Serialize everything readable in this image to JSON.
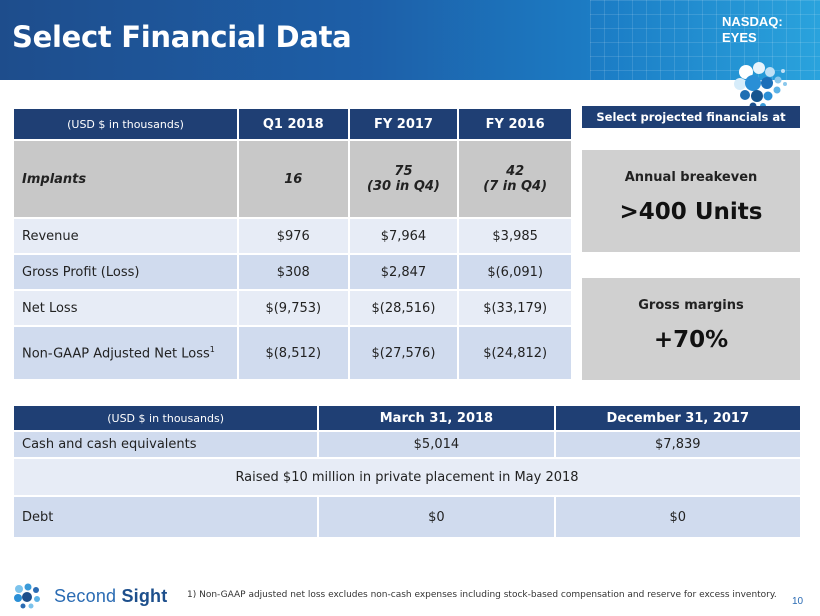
{
  "header": {
    "title": "Select Financial Data",
    "ticker_line1": "NASDAQ:",
    "ticker_line2": "EYES"
  },
  "performance_table": {
    "columns": [
      "(USD $ in thousands)",
      "Q1 2018",
      "FY 2017",
      "FY 2016"
    ],
    "implants": {
      "label": "Implants",
      "q1_2018": "16",
      "fy2017_line1": "75",
      "fy2017_line2": "(30 in Q4)",
      "fy2016_line1": "42",
      "fy2016_line2": "(7 in Q4)"
    },
    "rows": [
      {
        "label": "Revenue",
        "q1_2018": "$976",
        "fy2017": "$7,964",
        "fy2016": "$3,985"
      },
      {
        "label": "Gross Profit (Loss)",
        "q1_2018": "$308",
        "fy2017": "$2,847",
        "fy2016": "$(6,091)"
      },
      {
        "label": "Net Loss",
        "q1_2018": "$(9,753)",
        "fy2017": "$(28,516)",
        "fy2016": "$(33,179)"
      },
      {
        "label": "Non-GAAP Adjusted Net Loss",
        "sup": "1",
        "q1_2018": "$(8,512)",
        "fy2017": "$(27,576)",
        "fy2016": "$(24,812)"
      }
    ]
  },
  "projections": {
    "header": "Select projected financials at scale",
    "boxes": [
      {
        "label": "Annual breakeven",
        "value": ">400 Units"
      },
      {
        "label": "Gross margins",
        "value": "+70%"
      }
    ]
  },
  "balance_table": {
    "columns": [
      "(USD $ in thousands)",
      "March 31, 2018",
      "December 31, 2017"
    ],
    "cash": {
      "label": "Cash and cash equivalents",
      "mar": "$5,014",
      "dec": "$7,839"
    },
    "note": "Raised $10 million in private placement in May 2018",
    "debt": {
      "label": "Debt",
      "mar": "$0",
      "dec": "$0"
    }
  },
  "footer": {
    "logo_word1": "Second",
    "logo_word2": "Sight",
    "footnote": "1) Non-GAAP adjusted net loss excludes non-cash expenses including stock-based compensation and reserve for excess inventory.",
    "page_number": "10"
  },
  "colors": {
    "header_blue": "#1e4d8c",
    "table_header": "#1f3f74",
    "row_dark": "#d0dbee",
    "row_light": "#e7ecf6",
    "implants_gray": "#c8c8c8",
    "box_gray": "#d0d0d0"
  }
}
